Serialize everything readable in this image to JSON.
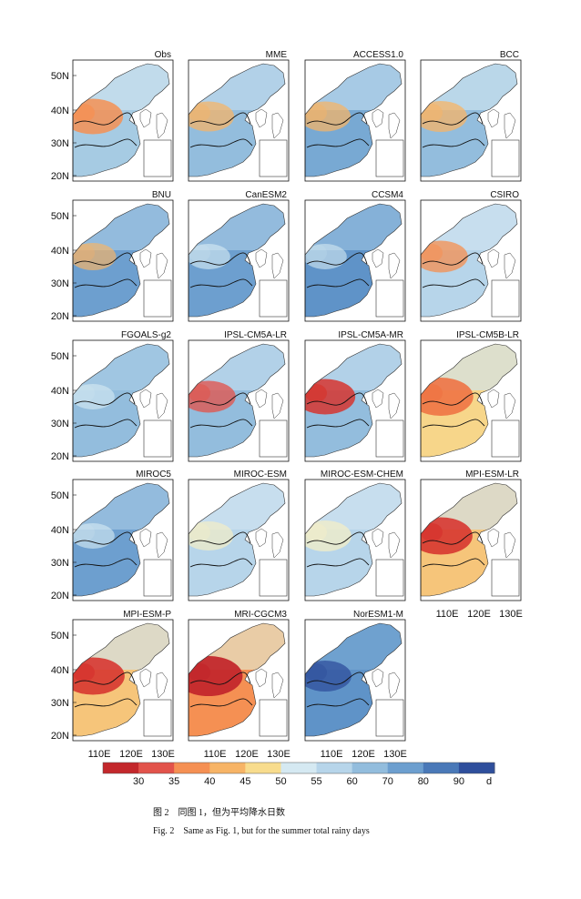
{
  "figure": {
    "ylabels": [
      "50N",
      "40N",
      "30N",
      "20N"
    ],
    "xlabels": [
      "110E",
      "120E",
      "130E"
    ],
    "panels": [
      {
        "title": "Obs",
        "base": "#a6cbe3",
        "north": "#cfe3f0",
        "warm": "#f59053",
        "warm_strength": 0.75
      },
      {
        "title": "MME",
        "base": "#93bddd",
        "north": "#c3dcee",
        "warm": "#f7b466",
        "warm_strength": 0.45
      },
      {
        "title": "ACCESS1.0",
        "base": "#78a9d3",
        "north": "#c0dbee",
        "warm": "#f7b466",
        "warm_strength": 0.45
      },
      {
        "title": "BCC",
        "base": "#93bddd",
        "north": "#d0e5f0",
        "warm": "#f7b466",
        "warm_strength": 0.5
      },
      {
        "title": "BNU",
        "base": "#6d9fcf",
        "north": "#a8cbe5",
        "warm": "#f7b466",
        "warm_strength": 0.3
      },
      {
        "title": "CanESM2",
        "base": "#6d9fcf",
        "north": "#a8cbe5",
        "warm": "#d5e9f2",
        "warm_strength": 0.2
      },
      {
        "title": "CCSM4",
        "base": "#5f93c8",
        "north": "#9ac2e1",
        "warm": "#cfe6ef",
        "warm_strength": 0.2
      },
      {
        "title": "CSIRO",
        "base": "#b7d5ea",
        "north": "#cfe3f0",
        "warm": "#f59053",
        "warm_strength": 0.55
      },
      {
        "title": "FGOALS-g2",
        "base": "#93bddd",
        "north": "#a8cbe5",
        "warm": "#d5e9f2",
        "warm_strength": 0.2
      },
      {
        "title": "IPSL-CM5A-LR",
        "base": "#93bddd",
        "north": "#c3dcee",
        "warm": "#e2534b",
        "warm_strength": 0.55
      },
      {
        "title": "IPSL-CM5A-MR",
        "base": "#93bddd",
        "north": "#c3dcee",
        "warm": "#d6352f",
        "warm_strength": 0.75
      },
      {
        "title": "IPSL-CM5B-LR",
        "base": "#f7d68a",
        "north": "#cfe3f0",
        "warm": "#ee7545",
        "warm_strength": 0.9
      },
      {
        "title": "MIROC5",
        "base": "#6d9fcf",
        "north": "#a8cbe5",
        "warm": "#d5e9f2",
        "warm_strength": 0.2
      },
      {
        "title": "MIROC-ESM",
        "base": "#b7d5ea",
        "north": "#cfe3f0",
        "warm": "#f3edc7",
        "warm_strength": 0.4
      },
      {
        "title": "MIROC-ESM-CHEM",
        "base": "#b7d5ea",
        "north": "#cfe3f0",
        "warm": "#f3edc7",
        "warm_strength": 0.5
      },
      {
        "title": "MPI-ESM-LR",
        "base": "#f6c57a",
        "north": "#cfe3f0",
        "warm": "#d6352f",
        "warm_strength": 0.85
      },
      {
        "title": "MPI-ESM-P",
        "base": "#f6c57a",
        "north": "#cfe3f0",
        "warm": "#d6352f",
        "warm_strength": 0.85
      },
      {
        "title": "MRI-CGCM3",
        "base": "#f59053",
        "north": "#e2ecd2",
        "warm": "#c3282c",
        "warm_strength": 1.0
      },
      {
        "title": "NorESM1-M",
        "base": "#5f93c8",
        "north": "#78a9d3",
        "warm": "#2f4f9c",
        "warm_strength": 0.5
      }
    ]
  },
  "colorbar": {
    "labels": [
      "30",
      "35",
      "40",
      "45",
      "50",
      "55",
      "60",
      "70",
      "80",
      "90"
    ],
    "unit": "d",
    "colors": [
      "#c3282c",
      "#e2534b",
      "#f59053",
      "#f7b466",
      "#f8dc8d",
      "#d5e9f2",
      "#b7d5ea",
      "#93bddd",
      "#6d9fcf",
      "#4a79b8",
      "#2f4f9c"
    ]
  },
  "caption": {
    "cn": "图 2　同图 1，但为平均降水日数",
    "en": "Fig. 2　Same as Fig. 1, but for the summer total rainy days"
  }
}
